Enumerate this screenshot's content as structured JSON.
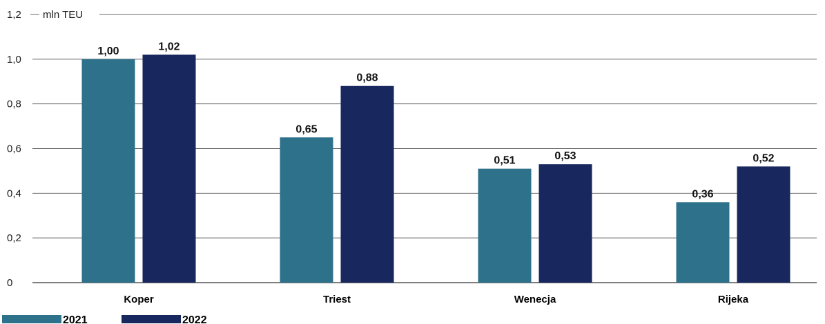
{
  "chart_data": {
    "type": "bar",
    "categories": [
      "Koper",
      "Triest",
      "Wenecja",
      "Rijeka"
    ],
    "series": [
      {
        "name": "2021",
        "color": "#2e718b",
        "values": [
          1.0,
          0.65,
          0.51,
          0.36
        ],
        "labels": [
          "1,00",
          "0,65",
          "0,51",
          "0,36"
        ]
      },
      {
        "name": "2022",
        "color": "#18275e",
        "values": [
          1.02,
          0.88,
          0.53,
          0.52
        ],
        "labels": [
          "1,02",
          "0,88",
          "0,53",
          "0,52"
        ]
      }
    ],
    "unit_label": "mln TEU",
    "ylim": [
      0,
      1.2
    ],
    "yticks": [
      0,
      0.2,
      0.4,
      0.6,
      0.8,
      1.0,
      1.2
    ],
    "ytick_labels": [
      "0",
      "0,2",
      "0,4",
      "0,6",
      "0,8",
      "1,0",
      "1,2"
    ],
    "grid": true,
    "legend_position": "bottom-left"
  }
}
